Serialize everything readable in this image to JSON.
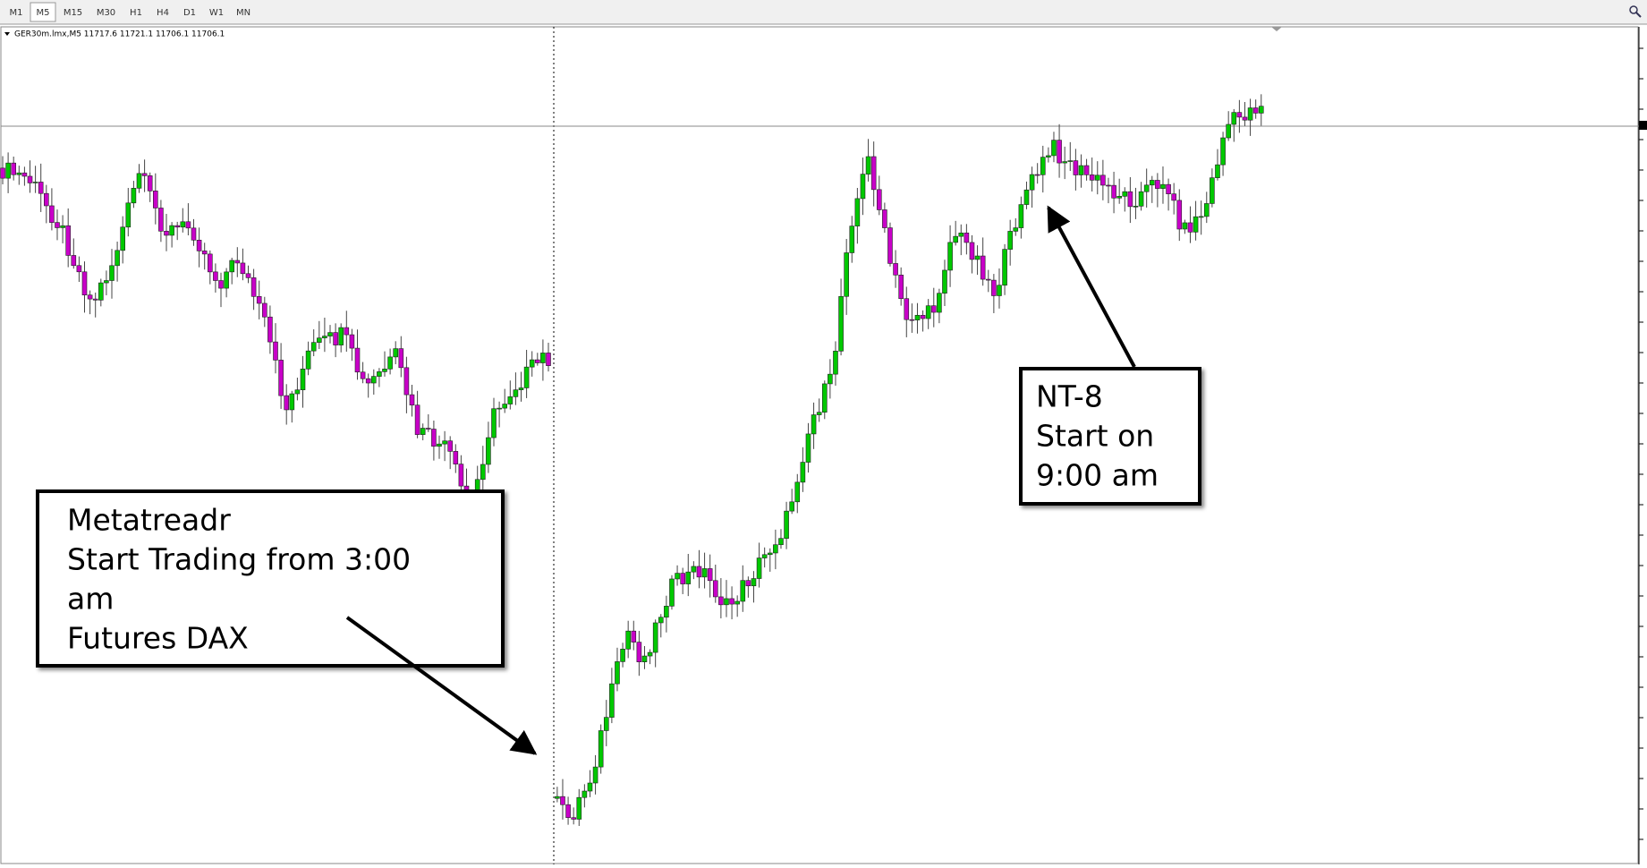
{
  "toolbar": {
    "timeframes": [
      "M1",
      "M5",
      "M15",
      "M30",
      "H1",
      "H4",
      "D1",
      "W1",
      "MN"
    ],
    "active": "M5"
  },
  "chart_header": "GER30m.lmx,M5  11717.6 11721.1 11706.1 11706.1",
  "annotations": [
    {
      "lines": [
        "Metatreadr",
        "Start Trading from 3:00",
        "am",
        "Futures  DAX"
      ]
    },
    {
      "lines": [
        "NT-8",
        "Start on",
        "9:00 am"
      ]
    }
  ]
}
